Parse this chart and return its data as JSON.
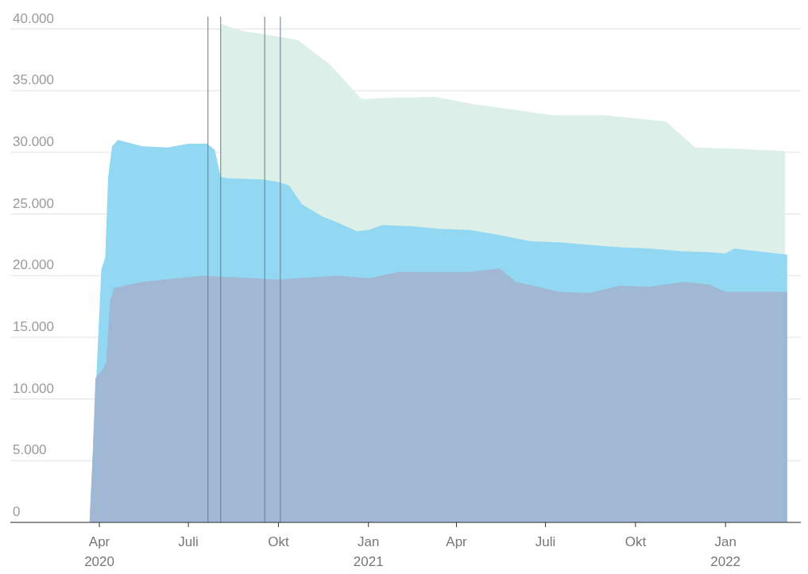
{
  "chart_data": {
    "type": "area",
    "xlim": [
      "2020-01-01",
      "2022-03-19"
    ],
    "ylim": [
      0,
      41000
    ],
    "xticks": [
      {
        "value": "2020-04-01",
        "label": "Apr\n2020"
      },
      {
        "value": "2020-07-01",
        "label": "Juli"
      },
      {
        "value": "2020-10-01",
        "label": "Okt"
      },
      {
        "value": "2021-01-01",
        "label": "Jan\n2021"
      },
      {
        "value": "2021-04-01",
        "label": "Apr"
      },
      {
        "value": "2021-07-01",
        "label": "Juli"
      },
      {
        "value": "2021-10-01",
        "label": "Okt"
      },
      {
        "value": "2022-01-01",
        "label": "Jan\n2022"
      }
    ],
    "yticks": [
      {
        "value": 0,
        "label": "0"
      },
      {
        "value": 5000,
        "label": "5.000"
      },
      {
        "value": 10000,
        "label": "10.000"
      },
      {
        "value": 15000,
        "label": "15.000"
      },
      {
        "value": 20000,
        "label": "20.000"
      },
      {
        "value": 25000,
        "label": "25.000"
      },
      {
        "value": 30000,
        "label": "30.000"
      },
      {
        "value": 35000,
        "label": "35.000"
      },
      {
        "value": 40000,
        "label": "40.000"
      }
    ],
    "grid": "y",
    "series": [
      {
        "color": "#dcefe9",
        "x": [
          "2020-08-03",
          "2020-08-28",
          "2020-09-15",
          "2020-10-21",
          "2020-11-23",
          "2020-12-25",
          "2021-01-15",
          "2021-03-10",
          "2021-04-19",
          "2021-07-09",
          "2021-09-01",
          "2021-11-01",
          "2021-12-01",
          "2022-01-08",
          "2022-03-03"
        ],
        "values": [
          40400,
          39800,
          39600,
          39100,
          37100,
          34300,
          34400,
          34500,
          33900,
          33000,
          33000,
          32500,
          30400,
          30300,
          30100
        ]
      },
      {
        "color": "#92d8f3",
        "x": [
          "2020-03-22",
          "2020-04-03",
          "2020-04-07",
          "2020-04-10",
          "2020-04-14",
          "2020-04-20",
          "2020-05-15",
          "2020-06-10",
          "2020-07-01",
          "2020-07-20",
          "2020-07-28",
          "2020-08-03",
          "2020-08-10",
          "2020-09-15",
          "2020-10-01",
          "2020-10-12",
          "2020-10-25",
          "2020-11-15",
          "2020-12-01",
          "2020-12-20",
          "2021-01-01",
          "2021-01-15",
          "2021-02-15",
          "2021-03-15",
          "2021-04-15",
          "2021-05-15",
          "2021-06-15",
          "2021-07-15",
          "2021-08-15",
          "2021-09-15",
          "2021-10-15",
          "2021-11-15",
          "2021-12-15",
          "2022-01-01",
          "2022-01-10",
          "2022-02-01",
          "2022-03-05"
        ],
        "values": [
          0,
          20500,
          21500,
          28000,
          30500,
          31000,
          30500,
          30400,
          30700,
          30700,
          30200,
          28000,
          27900,
          27800,
          27600,
          27300,
          25800,
          24800,
          24300,
          23600,
          23700,
          24100,
          24000,
          23800,
          23700,
          23300,
          22800,
          22700,
          22500,
          22300,
          22200,
          22000,
          21900,
          21800,
          22200,
          22000,
          21700
        ]
      },
      {
        "color": "#a0b8d4",
        "x": [
          "2020-03-22",
          "2020-03-25",
          "2020-03-28",
          "2020-04-05",
          "2020-04-08",
          "2020-04-12",
          "2020-04-16",
          "2020-05-15",
          "2020-07-15",
          "2020-10-01",
          "2020-12-01",
          "2021-01-01",
          "2021-02-01",
          "2021-04-15",
          "2021-05-15",
          "2021-06-01",
          "2021-07-15",
          "2021-08-15",
          "2021-09-15",
          "2021-10-15",
          "2021-11-20",
          "2021-12-15",
          "2022-01-01",
          "2022-03-05"
        ],
        "values": [
          0,
          5000,
          11700,
          12500,
          13000,
          18000,
          19000,
          19500,
          20000,
          19700,
          20000,
          19800,
          20300,
          20300,
          20600,
          19500,
          18700,
          18600,
          19200,
          19100,
          19500,
          19300,
          18700,
          18700
        ]
      }
    ],
    "ref_lines": [
      {
        "axis": "x",
        "value": "2020-07-21",
        "color": "#6b7a8a"
      },
      {
        "axis": "x",
        "value": "2020-08-03",
        "color": "#6b7a8a"
      },
      {
        "axis": "x",
        "value": "2020-09-17",
        "color": "#6b7a8a"
      },
      {
        "axis": "x",
        "value": "2020-10-03",
        "color": "#6b7a8a"
      }
    ]
  }
}
